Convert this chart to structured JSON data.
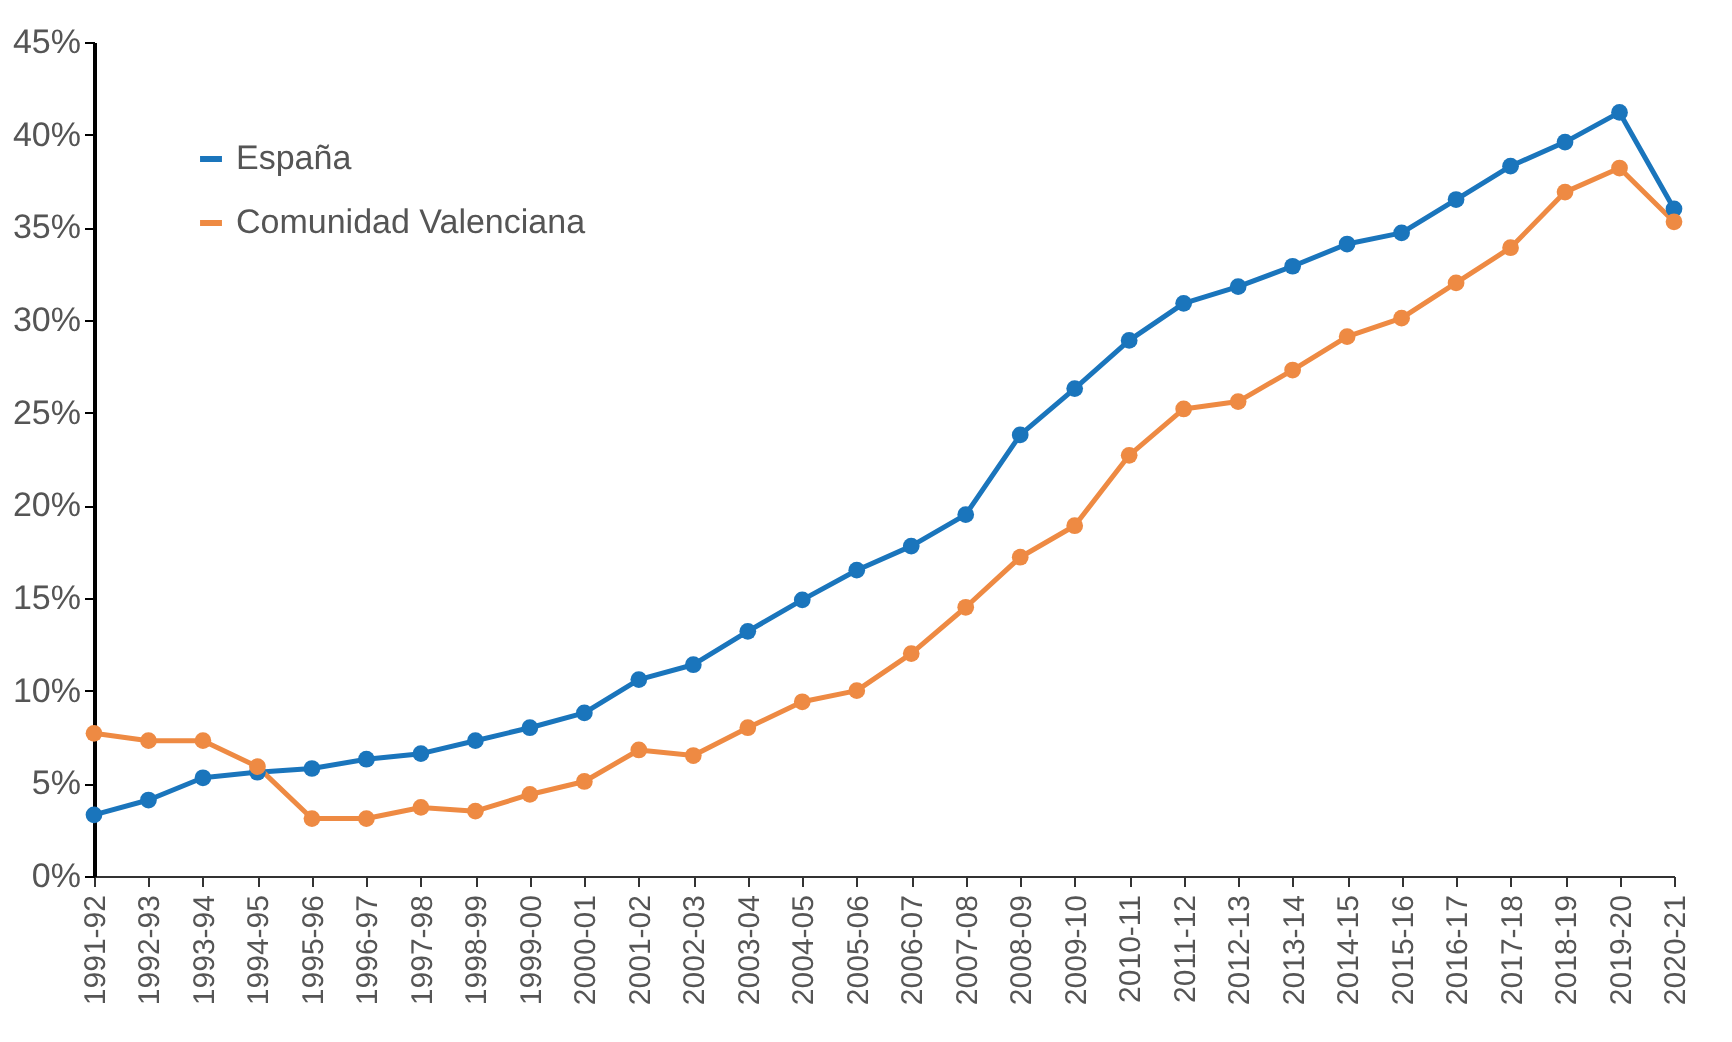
{
  "chart_data": {
    "type": "line",
    "categories": [
      "1991-92",
      "1992-93",
      "1993-94",
      "1994-95",
      "1995-96",
      "1996-97",
      "1997-98",
      "1998-99",
      "1999-00",
      "2000-01",
      "2001-02",
      "2002-03",
      "2003-04",
      "2004-05",
      "2005-06",
      "2006-07",
      "2007-08",
      "2008-09",
      "2009-10",
      "2010-11",
      "2011-12",
      "2012-13",
      "2013-14",
      "2014-15",
      "2015-16",
      "2016-17",
      "2017-18",
      "2018-19",
      "2019-20",
      "2020-21"
    ],
    "series": [
      {
        "name": "España",
        "color": "#1a75bc",
        "values": [
          3.3,
          4.1,
          5.3,
          5.6,
          5.8,
          6.3,
          6.6,
          7.3,
          8.0,
          8.8,
          10.6,
          11.4,
          13.2,
          14.9,
          16.5,
          17.8,
          19.5,
          23.8,
          26.3,
          28.9,
          30.9,
          31.8,
          32.9,
          34.1,
          34.7,
          36.5,
          38.3,
          39.6,
          41.2,
          36.0
        ]
      },
      {
        "name": "Comunidad Valenciana",
        "color": "#ee8a43",
        "values": [
          7.7,
          7.3,
          7.3,
          5.9,
          3.1,
          3.1,
          3.7,
          3.5,
          4.4,
          5.1,
          6.8,
          6.5,
          8.0,
          9.4,
          10.0,
          12.0,
          14.5,
          17.2,
          18.9,
          22.7,
          25.2,
          25.6,
          27.3,
          29.1,
          30.1,
          32.0,
          33.9,
          36.9,
          38.2,
          35.3
        ]
      }
    ],
    "ylim": [
      0,
      45
    ],
    "yticks": [
      {
        "value": 0,
        "label": "0%"
      },
      {
        "value": 5,
        "label": "5%"
      },
      {
        "value": 10,
        "label": "10%"
      },
      {
        "value": 15,
        "label": "15%"
      },
      {
        "value": 20,
        "label": "20%"
      },
      {
        "value": 25,
        "label": "25%"
      },
      {
        "value": 30,
        "label": "30%"
      },
      {
        "value": 35,
        "label": "35%"
      },
      {
        "value": 40,
        "label": "40%"
      },
      {
        "value": 45,
        "label": "45%"
      }
    ],
    "grid": false,
    "legend": "top left",
    "marker": "circle",
    "line_style": "solid"
  }
}
